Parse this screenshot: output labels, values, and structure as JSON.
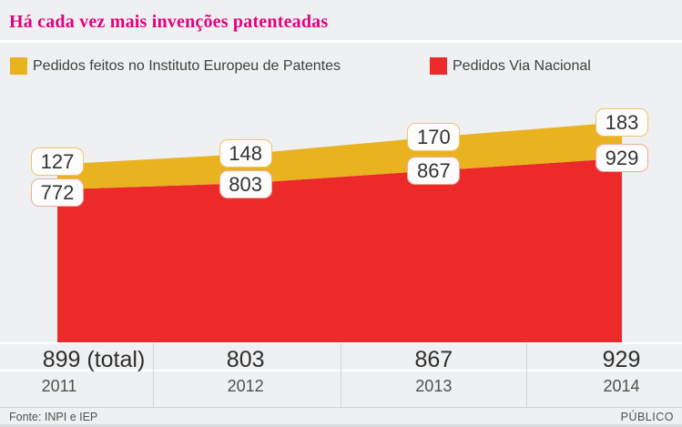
{
  "title": "Há cada vez mais invenções patenteadas",
  "chart_data": {
    "type": "area",
    "stacked": true,
    "title": "Há cada vez mais invenções patenteadas",
    "categories": [
      "2011",
      "2012",
      "2013",
      "2014"
    ],
    "series": [
      {
        "name": "Pedidos feitos no Instituto Europeu de Patentes",
        "color": "#E9B320",
        "label_border": "#EDC669",
        "values": [
          127,
          148,
          170,
          183
        ]
      },
      {
        "name": "Pedidos Via Nacional",
        "color": "#ED2A2A",
        "label_border": "#F5A79D",
        "values": [
          772,
          803,
          867,
          929
        ]
      }
    ],
    "totals": [
      899,
      951,
      1037,
      1112
    ],
    "ylim": [
      0,
      1150
    ],
    "grid": false,
    "legend_position": "top",
    "annotation_note": "899 (total)"
  },
  "table": {
    "values": [
      "899 (total)",
      "803",
      "867",
      "929"
    ],
    "years": [
      "2011",
      "2012",
      "2013",
      "2014"
    ]
  },
  "footer": {
    "source": "Fonte: INPI e IEP",
    "brand": "PÚBLICO"
  },
  "colors": {
    "title_pink": "#E5007D",
    "background": "#EFF0F2",
    "yellow": "#E9B320",
    "red": "#ED2A2A"
  }
}
